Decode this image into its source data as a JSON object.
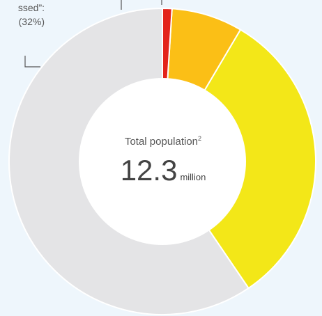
{
  "colors": {
    "background": "#eef6fc",
    "segment_large": "#e4e4e6",
    "segment_yellow": "#f3e718",
    "segment_orange": "#fbbf16",
    "segment_red": "#e3241b",
    "center": "#ffffff",
    "leader": "#555555",
    "text": "#555555"
  },
  "chart_data": {
    "type": "pie",
    "donut": true,
    "legend": "none",
    "slices": [
      {
        "value": 59.5,
        "color": "#e4e4e6"
      },
      {
        "value": 32,
        "color": "#f3e718"
      },
      {
        "value": 7.5,
        "color": "#fbbf16"
      },
      {
        "value": 1,
        "color": "#e3241b"
      }
    ],
    "annotations": [
      {
        "line1": "ssed”:",
        "line2": "(32%)"
      }
    ],
    "center": {
      "title": "Total population",
      "title_superscript": "2",
      "value": "12.3",
      "unit": "million"
    }
  }
}
